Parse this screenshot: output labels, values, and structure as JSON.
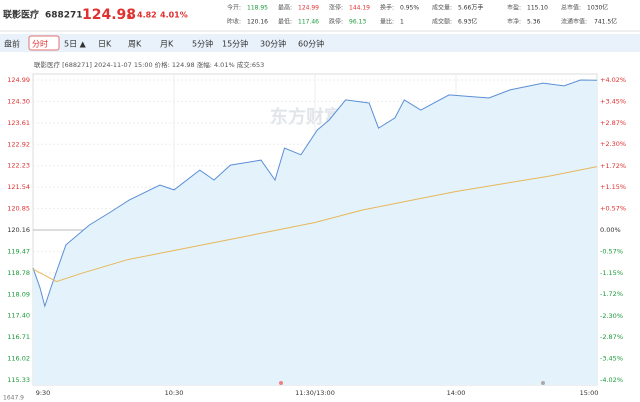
{
  "header": {
    "name": "联影医疗",
    "code": "688271",
    "price": "124.98",
    "arrow": "▲",
    "change": "4.82",
    "change_pct": "4.01%"
  },
  "stats": [
    {
      "label": "今开:",
      "value": "118.95",
      "color": "#1a9a3a"
    },
    {
      "label": "最高:",
      "value": "124.99",
      "color": "#e03030"
    },
    {
      "label": "涨停:",
      "value": "144.19",
      "color": "#e03030"
    },
    {
      "label": "换手:",
      "value": "0.95%",
      "color": "#333333"
    },
    {
      "label": "成交量:",
      "value": "5.66万手",
      "color": "#333333"
    },
    {
      "label": "市盈:",
      "value": "115.10",
      "color": "#333333"
    },
    {
      "label": "总市值:",
      "value": "1030亿",
      "color": "#333333"
    },
    {
      "label": "昨收:",
      "value": "120.16",
      "color": "#333333"
    },
    {
      "label": "最低:",
      "value": "117.46",
      "color": "#1a9a3a"
    },
    {
      "label": "跌停:",
      "value": "96.13",
      "color": "#1a9a3a"
    },
    {
      "label": "量比:",
      "value": "1",
      "color": "#333333"
    },
    {
      "label": "成交额:",
      "value": "6.93亿",
      "color": "#333333"
    },
    {
      "label": "市净:",
      "value": "5.36",
      "color": "#333333"
    },
    {
      "label": "流通市值:",
      "value": "741.5亿",
      "color": "#333333"
    }
  ],
  "tabs": [
    "盘前",
    "分时",
    "5日 ▲",
    "日K",
    "周K",
    "月K",
    "5分钟",
    "15分钟",
    "30分钟",
    "60分钟"
  ],
  "active_tab": 1,
  "chart_data": {
    "type": "line",
    "info": "联影医疗 [688271] 2024-11-07 15:00 价格: 124.98 涨幅: 4.01% 成交:653",
    "watermark": "东方财富",
    "volume_label": "1647.9",
    "xlim": [
      0,
      240
    ],
    "xticks": [
      {
        "value": 0,
        "label": "9:30"
      },
      {
        "value": 60,
        "label": "10:30"
      },
      {
        "value": 120,
        "label": "11:30/13:00"
      },
      {
        "value": 180,
        "label": "14:00"
      },
      {
        "value": 240,
        "label": "15:00"
      }
    ],
    "ylim": [
      115.33,
      124.99
    ],
    "yticks": [
      124.99,
      {
        "value": 124.3,
        "label": "124.30"
      },
      123.61,
      122.92,
      122.23,
      121.54,
      120.85,
      120.16,
      119.47,
      118.78,
      118.09,
      {
        "value": 117.4,
        "label": "117.40"
      },
      116.71,
      116.02,
      115.33
    ],
    "y2lim": [
      -4.02,
      4.02
    ],
    "y2ticks": [
      {
        "value": 4.02,
        "label": "+4.02%"
      },
      {
        "value": 3.45,
        "label": "+3.45%"
      },
      {
        "value": 2.87,
        "label": "+2.87%"
      },
      {
        "value": 2.3,
        "label": "+2.30%"
      },
      {
        "value": 1.72,
        "label": "+1.72%"
      },
      {
        "value": 1.15,
        "label": "+1.15%"
      },
      {
        "value": 0.57,
        "label": "+0.57%"
      },
      {
        "value": 0,
        "label": "0.00%"
      },
      {
        "value": -0.57,
        "label": "-0.57%"
      },
      {
        "value": -1.15,
        "label": "-1.15%"
      },
      {
        "value": -1.72,
        "label": "-1.72%"
      },
      {
        "value": -2.3,
        "label": "-2.30%"
      },
      {
        "value": -2.87,
        "label": "-2.87%"
      },
      {
        "value": -3.45,
        "label": "-3.45%"
      },
      {
        "value": -4.02,
        "label": "-4.02%"
      }
    ],
    "grid": true,
    "series": [
      {
        "color": "#5b8fd6",
        "fill": "#e4f2fb",
        "x": [
          0,
          3,
          5,
          8,
          14,
          24,
          33,
          41,
          54,
          60,
          71,
          77,
          84,
          97,
          103,
          107,
          114,
          121,
          126,
          133,
          143,
          147,
          154,
          158,
          165,
          177,
          194,
          203,
          217,
          226,
          233,
          240
        ],
        "values": [
          118.94,
          118.3,
          117.71,
          118.39,
          119.68,
          120.32,
          120.74,
          121.13,
          121.61,
          121.45,
          122.09,
          121.77,
          122.25,
          122.41,
          121.77,
          122.8,
          122.58,
          123.38,
          123.7,
          124.35,
          124.25,
          123.44,
          123.77,
          124.35,
          124.02,
          124.51,
          124.41,
          124.67,
          124.89,
          124.8,
          124.99,
          124.98
        ]
      },
      {
        "color": "#e6b85a",
        "x": [
          0,
          5,
          10,
          20,
          40,
          60,
          80,
          100,
          120,
          140,
          160,
          180,
          200,
          220,
          240
        ],
        "values": [
          118.9,
          118.7,
          118.5,
          118.75,
          119.2,
          119.5,
          119.8,
          120.1,
          120.4,
          120.8,
          121.1,
          121.4,
          121.65,
          121.9,
          122.2
        ]
      }
    ]
  }
}
